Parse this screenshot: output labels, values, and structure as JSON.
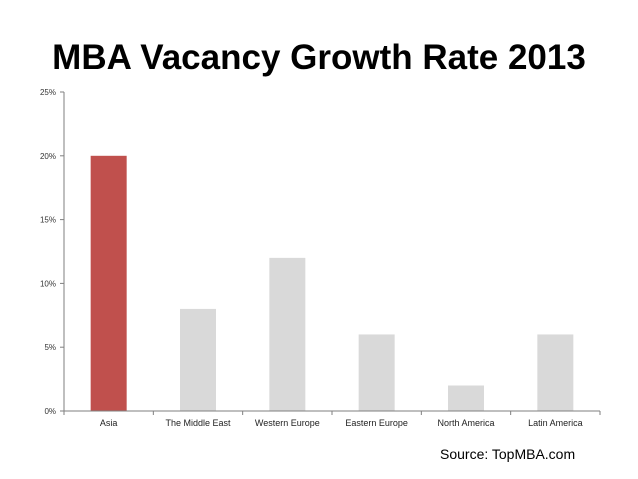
{
  "chart_data": {
    "type": "bar",
    "title": "MBA Vacancy Growth Rate 2013",
    "categories": [
      "Asia",
      "The Middle East",
      "Western Europe",
      "Eastern Europe",
      "North America",
      "Latin America"
    ],
    "values": [
      20,
      8,
      12,
      6,
      2,
      6
    ],
    "ylim": [
      0,
      25
    ],
    "yticks": [
      0,
      5,
      10,
      15,
      20,
      25
    ],
    "ytick_labels": [
      "0%",
      "5%",
      "10%",
      "15%",
      "20%",
      "25%"
    ],
    "xlabel": "",
    "ylabel": "",
    "grid": false,
    "highlight_index": 0,
    "colors": {
      "highlight": "#c0504d",
      "default": "#d9d9d9",
      "axis": "#7f7f7f"
    }
  },
  "source": "Source: TopMBA.com"
}
